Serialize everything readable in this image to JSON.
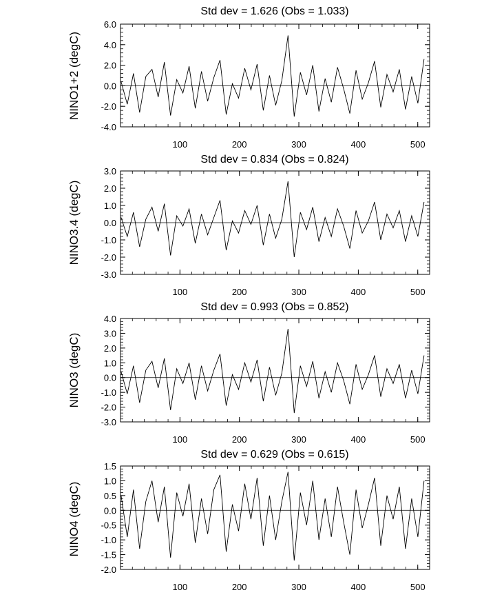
{
  "chart_data": [
    {
      "type": "line",
      "title": "Std dev = 1.626 (Obs = 1.033)",
      "ylabel": "NINO1+2 (degC)",
      "xlabel": "",
      "xlim": [
        0,
        520
      ],
      "ylim": [
        -4.0,
        6.0
      ],
      "xticks": [
        100,
        200,
        300,
        400,
        500
      ],
      "yticks": [
        -4.0,
        -2.0,
        0.0,
        2.0,
        4.0,
        6.0
      ],
      "ytick_labels": [
        "-4.0",
        "-2.0",
        "0.0",
        "2.0",
        "4.0",
        "6.0"
      ],
      "reference_line": 0.0,
      "series": [
        {
          "x_start": 1,
          "x_step": 1,
          "values": [
            0.4,
            -1.8,
            1.2,
            -2.6,
            0.9,
            1.6,
            -1.1,
            2.3,
            -2.9,
            0.6,
            -0.7,
            1.9,
            -2.2,
            1.4,
            -1.5,
            0.8,
            2.5,
            -2.8,
            0.2,
            -1.2,
            1.7,
            -0.4,
            2.1,
            -2.4,
            1.0,
            -1.9,
            0.5,
            4.9,
            -3.0,
            1.3,
            -0.9,
            2.0,
            -2.5,
            0.7,
            -1.6,
            1.8,
            -0.3,
            -2.7,
            1.5,
            -1.3,
            0.3,
            2.4,
            -2.1,
            1.1,
            -0.6,
            1.6,
            -2.3,
            0.9,
            -1.7,
            2.6
          ]
        }
      ]
    },
    {
      "type": "line",
      "title": "Std dev = 0.834 (Obs = 0.824)",
      "ylabel": "NINO3.4 (degC)",
      "xlabel": "",
      "xlim": [
        0,
        520
      ],
      "ylim": [
        -3.0,
        3.0
      ],
      "xticks": [
        100,
        200,
        300,
        400,
        500
      ],
      "yticks": [
        -3.0,
        -2.0,
        -1.0,
        0.0,
        1.0,
        2.0,
        3.0
      ],
      "ytick_labels": [
        "-3.0",
        "-2.0",
        "-1.0",
        "0.0",
        "1.0",
        "2.0",
        "3.0"
      ],
      "reference_line": 0.0,
      "series": [
        {
          "x_start": 1,
          "x_step": 1,
          "values": [
            0.3,
            -0.8,
            0.6,
            -1.4,
            0.2,
            0.9,
            -0.5,
            1.1,
            -1.9,
            0.4,
            -0.2,
            0.8,
            -1.2,
            0.5,
            -0.7,
            0.3,
            1.3,
            -1.6,
            0.1,
            -0.6,
            0.7,
            -0.1,
            1.0,
            -1.3,
            0.5,
            -0.9,
            0.2,
            2.4,
            -2.0,
            0.6,
            -0.4,
            0.9,
            -1.1,
            0.3,
            -0.8,
            0.8,
            -0.2,
            -1.5,
            0.7,
            -0.6,
            0.1,
            1.2,
            -1.0,
            0.5,
            -0.3,
            0.7,
            -1.1,
            0.4,
            -0.8,
            1.2
          ]
        }
      ]
    },
    {
      "type": "line",
      "title": "Std dev = 0.993 (Obs = 0.852)",
      "ylabel": "NINO3 (degC)",
      "xlabel": "",
      "xlim": [
        0,
        520
      ],
      "ylim": [
        -3.0,
        4.0
      ],
      "xticks": [
        100,
        200,
        300,
        400,
        500
      ],
      "yticks": [
        -3.0,
        -2.0,
        -1.0,
        0.0,
        1.0,
        2.0,
        3.0,
        4.0
      ],
      "ytick_labels": [
        "-3.0",
        "-2.0",
        "-1.0",
        "0.0",
        "1.0",
        "2.0",
        "3.0",
        "4.0"
      ],
      "reference_line": 0.0,
      "series": [
        {
          "x_start": 1,
          "x_step": 1,
          "values": [
            0.4,
            -1.1,
            0.8,
            -1.7,
            0.5,
            1.1,
            -0.7,
            1.3,
            -2.2,
            0.6,
            -0.4,
            1.0,
            -1.5,
            0.8,
            -0.9,
            0.5,
            1.6,
            -1.9,
            0.2,
            -0.8,
            1.0,
            -0.3,
            1.2,
            -1.6,
            0.7,
            -1.2,
            0.3,
            3.3,
            -2.4,
            0.8,
            -0.6,
            1.1,
            -1.4,
            0.4,
            -1.0,
            1.0,
            -0.2,
            -1.8,
            0.9,
            -0.8,
            0.2,
            1.5,
            -1.3,
            0.6,
            -0.4,
            0.9,
            -1.4,
            0.5,
            -1.1,
            1.5
          ]
        }
      ]
    },
    {
      "type": "line",
      "title": "Std dev = 0.629 (Obs = 0.615)",
      "ylabel": "NINO4 (degC)",
      "xlabel": "",
      "xlim": [
        0,
        520
      ],
      "ylim": [
        -2.0,
        1.5
      ],
      "xticks": [
        100,
        200,
        300,
        400,
        500
      ],
      "yticks": [
        -2.0,
        -1.5,
        -1.0,
        -0.5,
        0.0,
        0.5,
        1.0,
        1.5
      ],
      "ytick_labels": [
        "-2.0",
        "-1.5",
        "-1.0",
        "-0.5",
        "0.0",
        "0.5",
        "1.0",
        "1.5"
      ],
      "reference_line": 0.0,
      "series": [
        {
          "x_start": 1,
          "x_step": 1,
          "values": [
            0.5,
            -0.9,
            0.7,
            -1.3,
            0.3,
            1.0,
            -0.4,
            0.8,
            -1.6,
            0.6,
            -0.2,
            0.9,
            -1.1,
            0.4,
            -0.8,
            0.7,
            1.2,
            -1.4,
            0.2,
            -0.7,
            0.9,
            -0.3,
            1.1,
            -1.2,
            0.5,
            -1.0,
            0.3,
            1.3,
            -1.7,
            0.6,
            -0.5,
            1.0,
            -1.0,
            0.4,
            -0.9,
            0.8,
            -0.4,
            -1.5,
            0.7,
            -0.6,
            0.2,
            1.1,
            -1.2,
            0.5,
            -0.3,
            0.8,
            -1.3,
            0.4,
            -0.9,
            1.0
          ]
        }
      ]
    }
  ]
}
